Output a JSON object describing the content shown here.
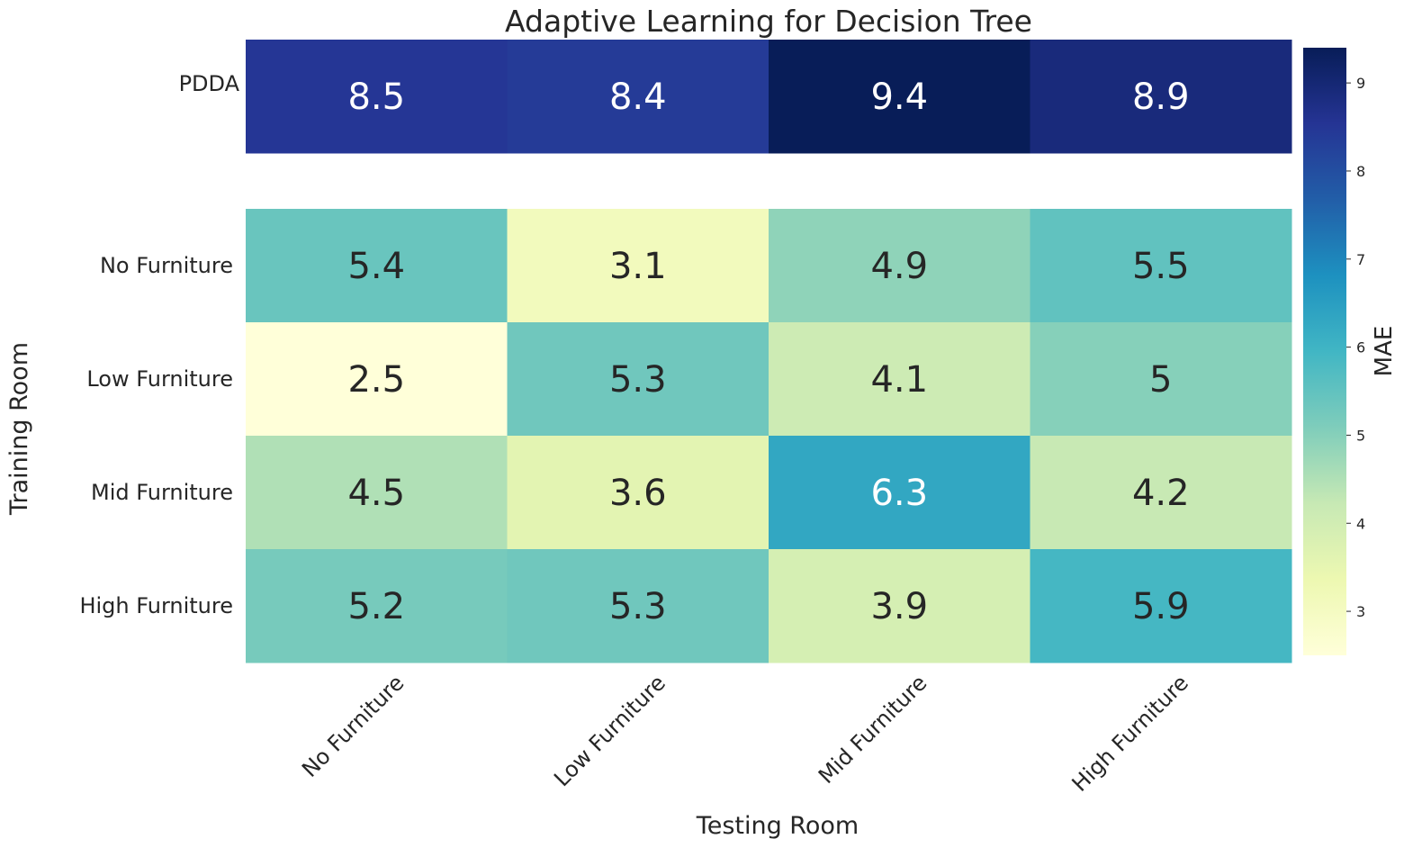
{
  "chart_data": {
    "type": "heatmap",
    "title": "Adaptive Learning for Decision Tree",
    "xlabel": "Testing Room",
    "ylabel": "Training Room",
    "colorbar_label": "MAE",
    "colormap": "YlGnBu",
    "vmin": 2.5,
    "vmax": 9.4,
    "colorbar_ticks": [
      "3",
      "4",
      "5",
      "6",
      "7",
      "8",
      "9"
    ],
    "x_categories": [
      "No Furniture",
      "Low Furniture",
      "Mid Furniture",
      "High Furniture"
    ],
    "top_block": {
      "rows": [
        "PDDA"
      ],
      "values": [
        [
          8.5,
          8.4,
          9.4,
          8.9
        ]
      ],
      "labels": [
        [
          "8.5",
          "8.4",
          "9.4",
          "8.9"
        ]
      ]
    },
    "main_block": {
      "rows": [
        "No Furniture",
        "Low Furniture",
        "Mid Furniture",
        "High Furniture"
      ],
      "values": [
        [
          5.4,
          3.1,
          4.9,
          5.5
        ],
        [
          2.5,
          5.3,
          4.1,
          5.0
        ],
        [
          4.5,
          3.6,
          6.3,
          4.2
        ],
        [
          5.2,
          5.3,
          3.9,
          5.9
        ]
      ],
      "labels": [
        [
          "5.4",
          "3.1",
          "4.9",
          "5.5"
        ],
        [
          "2.5",
          "5.3",
          "4.1",
          "5"
        ],
        [
          "4.5",
          "3.6",
          "6.3",
          "4.2"
        ],
        [
          "5.2",
          "5.3",
          "3.9",
          "5.9"
        ]
      ]
    }
  }
}
